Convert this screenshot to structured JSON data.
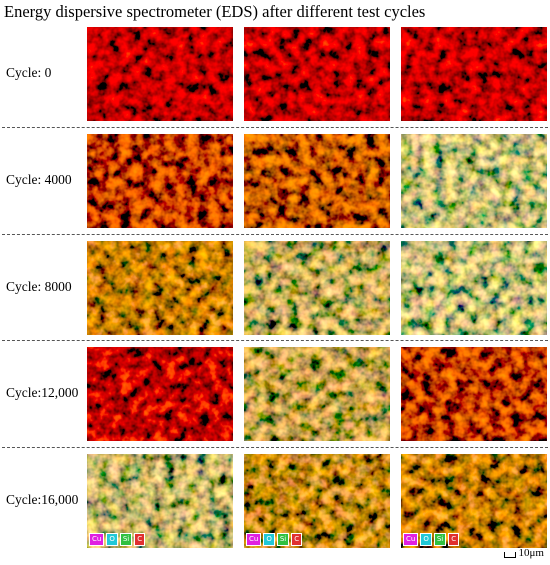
{
  "title": "Energy dispersive spectrometer (EDS) after different test cycles",
  "rows": [
    {
      "label": "Cycle: 0"
    },
    {
      "label": "Cycle: 4000"
    },
    {
      "label": "Cycle: 8000"
    },
    {
      "label": "Cycle:12,000"
    },
    {
      "label": "Cycle:16,000"
    }
  ],
  "legend": [
    "Cu",
    "O",
    "Si",
    "C"
  ],
  "scale_bar": "10μm"
}
